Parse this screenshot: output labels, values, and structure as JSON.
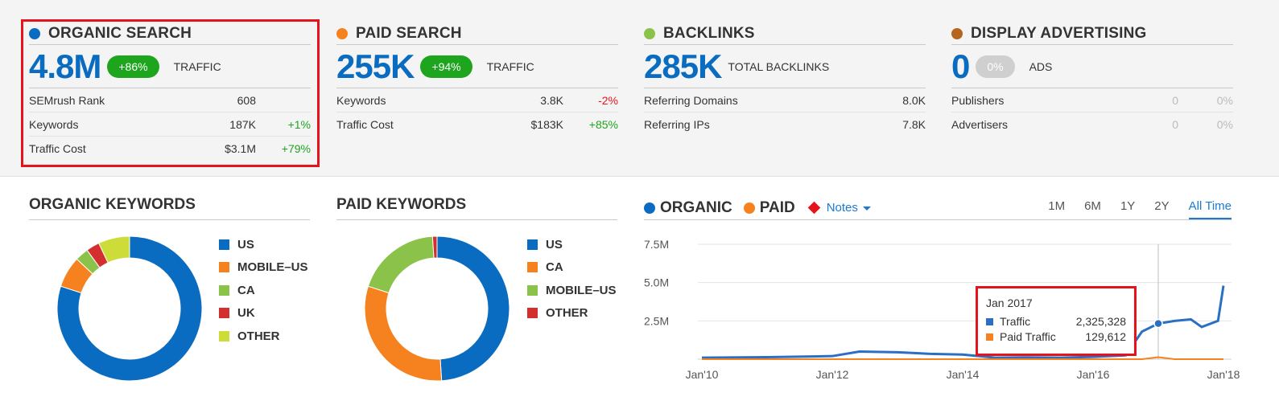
{
  "colors": {
    "accent_blue": "#0a6cc0",
    "orange": "#f5821f",
    "green_dot": "#8bc34a",
    "brown": "#b7651e",
    "positive": "#1ea51e",
    "negative": "#e5141c"
  },
  "overview": {
    "organic": {
      "title": "ORGANIC SEARCH",
      "value": "4.8M",
      "badge": "+86%",
      "metric_label": "TRAFFIC",
      "rows": [
        {
          "name": "SEMrush Rank",
          "value": "608",
          "change": ""
        },
        {
          "name": "Keywords",
          "value": "187K",
          "change": "+1%"
        },
        {
          "name": "Traffic Cost",
          "value": "$3.1M",
          "change": "+79%"
        }
      ]
    },
    "paid": {
      "title": "PAID SEARCH",
      "value": "255K",
      "badge": "+94%",
      "metric_label": "TRAFFIC",
      "rows": [
        {
          "name": "Keywords",
          "value": "3.8K",
          "change": "-2%"
        },
        {
          "name": "Traffic Cost",
          "value": "$183K",
          "change": "+85%"
        }
      ]
    },
    "backlinks": {
      "title": "BACKLINKS",
      "value": "285K",
      "metric_label": "TOTAL BACKLINKS",
      "rows": [
        {
          "name": "Referring Domains",
          "value": "8.0K",
          "change": ""
        },
        {
          "name": "Referring IPs",
          "value": "7.8K",
          "change": ""
        }
      ]
    },
    "display": {
      "title": "DISPLAY ADVERTISING",
      "value": "0",
      "badge": "0%",
      "metric_label": "ADS",
      "rows": [
        {
          "name": "Publishers",
          "value": "0",
          "change": "0%"
        },
        {
          "name": "Advertisers",
          "value": "0",
          "change": "0%"
        }
      ]
    }
  },
  "organic_keywords": {
    "title": "ORGANIC KEYWORDS",
    "legend": [
      "US",
      "MOBILE–US",
      "CA",
      "UK",
      "OTHER"
    ]
  },
  "paid_keywords": {
    "title": "PAID KEYWORDS",
    "legend": [
      "US",
      "CA",
      "MOBILE–US",
      "OTHER"
    ]
  },
  "traffic_chart": {
    "organic_label": "ORGANIC",
    "paid_label": "PAID",
    "notes_label": "Notes",
    "ranges": [
      "1M",
      "6M",
      "1Y",
      "2Y",
      "All Time"
    ],
    "active_range": "All Time",
    "tooltip": {
      "date": "Jan 2017",
      "traffic_label": "Traffic",
      "traffic_value": "2,325,328",
      "paid_label": "Paid Traffic",
      "paid_value": "129,612"
    }
  },
  "chart_data": [
    {
      "type": "pie",
      "title": "ORGANIC KEYWORDS",
      "categories": [
        "US",
        "MOBILE–US",
        "CA",
        "UK",
        "OTHER"
      ],
      "values": [
        80,
        7,
        3,
        3,
        7
      ],
      "colors": [
        "#0a6cc0",
        "#f5821f",
        "#8bc34a",
        "#d32f2f",
        "#cddc39"
      ]
    },
    {
      "type": "pie",
      "title": "PAID KEYWORDS",
      "categories": [
        "US",
        "CA",
        "MOBILE–US",
        "OTHER"
      ],
      "values": [
        49,
        31,
        19,
        1
      ],
      "colors": [
        "#0a6cc0",
        "#f5821f",
        "#8bc34a",
        "#d32f2f"
      ]
    },
    {
      "type": "line",
      "x": [
        "Jan'10",
        "Jan'11",
        "Jan'12",
        "Jun'12",
        "Jan'13",
        "Jul'13",
        "Jan'14",
        "Jul'14",
        "Jan'15",
        "Jul'15",
        "Jan'16",
        "Jul'16",
        "Oct'16",
        "Jan'17",
        "Apr'17",
        "Jul'17",
        "Sep'17",
        "Dec'17",
        "Jan'18"
      ],
      "x_tick_labels": [
        "Jan'10",
        "Jan'12",
        "Jan'14",
        "Jan'16",
        "Jan'18"
      ],
      "y_tick_labels": [
        "7.5M",
        "5.0M",
        "2.5M"
      ],
      "ylim": [
        0,
        7500000
      ],
      "series": [
        {
          "name": "Traffic",
          "color": "#2a6fc4",
          "values": [
            100000,
            130000,
            200000,
            500000,
            450000,
            350000,
            300000,
            100000,
            120000,
            100000,
            150000,
            250000,
            1800000,
            2325328,
            2500000,
            2600000,
            2100000,
            2500000,
            4800000
          ]
        },
        {
          "name": "Paid Traffic",
          "color": "#f5821f",
          "values": [
            0,
            0,
            0,
            0,
            0,
            0,
            0,
            0,
            0,
            0,
            0,
            0,
            0,
            129612,
            0,
            0,
            0,
            0,
            0
          ]
        }
      ]
    }
  ]
}
